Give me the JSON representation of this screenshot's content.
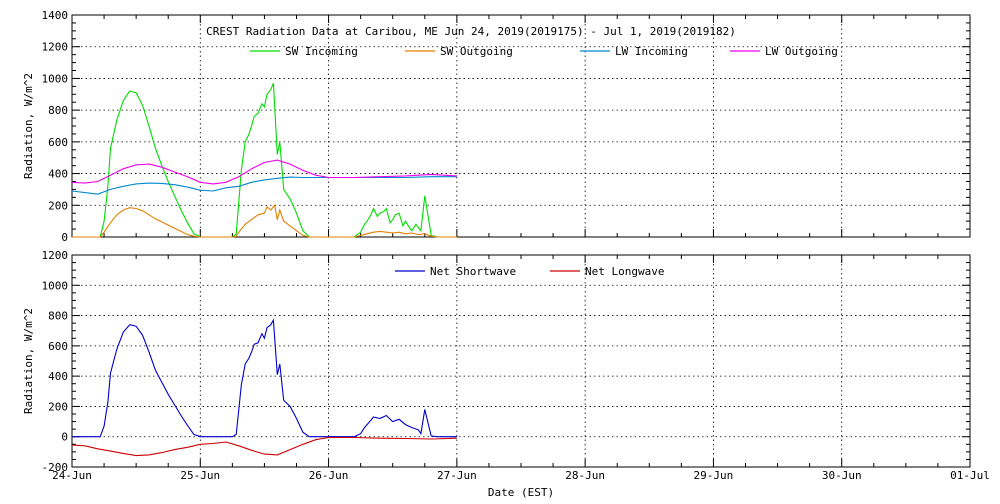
{
  "chart_data": [
    {
      "type": "line",
      "title": "CREST Radiation Data at Caribou, ME   Jun 24, 2019(2019175) - Jul  1, 2019(2019182)",
      "xlabel": "",
      "ylabel": "Radiation, W/m^2",
      "x_range": [
        "24-Jun",
        "01-Jul"
      ],
      "ylim": [
        0,
        1400
      ],
      "yticks": [
        0,
        200,
        400,
        600,
        800,
        1000,
        1200,
        1400
      ],
      "grid": true,
      "legend_position": "top",
      "series": [
        {
          "name": "SW Incoming",
          "color": "#00dd00",
          "x": [
            0.0,
            0.2,
            0.22,
            0.25,
            0.28,
            0.3,
            0.35,
            0.4,
            0.45,
            0.5,
            0.55,
            0.6,
            0.65,
            0.7,
            0.75,
            0.8,
            0.85,
            0.9,
            0.95,
            1.0,
            1.05,
            1.2,
            1.25,
            1.28,
            1.3,
            1.32,
            1.35,
            1.38,
            1.4,
            1.42,
            1.45,
            1.48,
            1.5,
            1.52,
            1.55,
            1.57,
            1.6,
            1.62,
            1.65,
            1.7,
            1.75,
            1.8,
            1.85,
            2.0,
            2.2,
            2.25,
            2.28,
            2.3,
            2.33,
            2.35,
            2.38,
            2.4,
            2.43,
            2.45,
            2.48,
            2.5,
            2.52,
            2.55,
            2.58,
            2.6,
            2.63,
            2.65,
            2.68,
            2.7,
            2.72,
            2.75,
            2.8,
            2.85,
            3.0
          ],
          "y": [
            0,
            0,
            0,
            100,
            320,
            560,
            740,
            860,
            920,
            910,
            830,
            700,
            560,
            450,
            350,
            260,
            170,
            90,
            20,
            0,
            0,
            0,
            0,
            20,
            220,
            420,
            600,
            650,
            700,
            760,
            780,
            840,
            820,
            900,
            930,
            970,
            520,
            600,
            300,
            240,
            150,
            40,
            0,
            0,
            0,
            30,
            80,
            100,
            140,
            180,
            130,
            150,
            160,
            180,
            90,
            110,
            140,
            150,
            70,
            100,
            60,
            40,
            80,
            60,
            40,
            260,
            10,
            0,
            0
          ]
        },
        {
          "name": "SW Outgoing",
          "color": "#e08000",
          "x": [
            0.0,
            0.2,
            0.22,
            0.25,
            0.3,
            0.35,
            0.4,
            0.45,
            0.5,
            0.55,
            0.6,
            0.65,
            0.7,
            0.75,
            0.8,
            0.85,
            0.9,
            0.95,
            1.0,
            1.05,
            1.2,
            1.25,
            1.28,
            1.3,
            1.35,
            1.4,
            1.45,
            1.5,
            1.52,
            1.55,
            1.58,
            1.6,
            1.62,
            1.65,
            1.7,
            1.75,
            1.8,
            1.85,
            2.0,
            2.2,
            2.25,
            2.3,
            2.35,
            2.4,
            2.45,
            2.5,
            2.55,
            2.6,
            2.65,
            2.7,
            2.75,
            2.8,
            2.85,
            3.0
          ],
          "y": [
            0,
            0,
            0,
            30,
            90,
            140,
            170,
            185,
            180,
            165,
            140,
            115,
            95,
            75,
            55,
            35,
            15,
            5,
            0,
            0,
            0,
            0,
            5,
            30,
            80,
            110,
            140,
            150,
            190,
            170,
            200,
            110,
            170,
            100,
            70,
            40,
            10,
            0,
            0,
            0,
            10,
            20,
            30,
            35,
            30,
            25,
            30,
            20,
            25,
            15,
            20,
            5,
            0,
            0
          ]
        },
        {
          "name": "LW Incoming",
          "color": "#0088cc",
          "x": [
            0.0,
            0.1,
            0.2,
            0.3,
            0.4,
            0.5,
            0.6,
            0.7,
            0.8,
            0.9,
            1.0,
            1.1,
            1.2,
            1.3,
            1.4,
            1.5,
            1.6,
            1.7,
            1.8,
            1.9,
            2.0,
            2.2,
            2.4,
            2.6,
            2.8,
            3.0
          ],
          "y": [
            290,
            280,
            270,
            300,
            320,
            335,
            340,
            338,
            330,
            315,
            295,
            290,
            310,
            320,
            345,
            360,
            370,
            378,
            375,
            375,
            375,
            375,
            375,
            375,
            380,
            380
          ]
        },
        {
          "name": "LW Outgoing",
          "color": "#ee00ee",
          "x": [
            0.0,
            0.1,
            0.2,
            0.3,
            0.4,
            0.5,
            0.6,
            0.7,
            0.8,
            0.9,
            1.0,
            1.1,
            1.2,
            1.3,
            1.4,
            1.5,
            1.6,
            1.7,
            1.8,
            1.9,
            2.0,
            2.2,
            2.4,
            2.6,
            2.8,
            3.0
          ],
          "y": [
            345,
            340,
            350,
            390,
            430,
            455,
            460,
            440,
            410,
            380,
            345,
            335,
            345,
            380,
            430,
            470,
            485,
            460,
            420,
            390,
            375,
            375,
            380,
            385,
            395,
            385
          ]
        }
      ]
    },
    {
      "type": "line",
      "title": "",
      "xlabel": "Date (EST)",
      "ylabel": "Radiation, W/m^2",
      "x_range": [
        "24-Jun",
        "01-Jul"
      ],
      "xtick_labels": [
        "24-Jun",
        "25-Jun",
        "26-Jun",
        "27-Jun",
        "28-Jun",
        "29-Jun",
        "30-Jun",
        "01-Jul"
      ],
      "ylim": [
        -200,
        1200
      ],
      "yticks": [
        -200,
        0,
        200,
        400,
        600,
        800,
        1000,
        1200
      ],
      "grid": true,
      "legend_position": "top",
      "series": [
        {
          "name": "Net Shortwave",
          "color": "#0000cc",
          "x": [
            0.0,
            0.2,
            0.22,
            0.25,
            0.28,
            0.3,
            0.35,
            0.4,
            0.45,
            0.5,
            0.55,
            0.6,
            0.65,
            0.7,
            0.75,
            0.8,
            0.85,
            0.9,
            0.95,
            1.0,
            1.05,
            1.2,
            1.25,
            1.28,
            1.3,
            1.32,
            1.35,
            1.38,
            1.4,
            1.42,
            1.45,
            1.48,
            1.5,
            1.52,
            1.55,
            1.57,
            1.6,
            1.62,
            1.65,
            1.7,
            1.75,
            1.8,
            1.85,
            2.0,
            2.2,
            2.25,
            2.28,
            2.3,
            2.33,
            2.35,
            2.4,
            2.45,
            2.5,
            2.55,
            2.6,
            2.65,
            2.7,
            2.72,
            2.75,
            2.8,
            2.85,
            3.0
          ],
          "y": [
            0,
            0,
            0,
            70,
            230,
            420,
            580,
            690,
            740,
            730,
            670,
            560,
            440,
            360,
            280,
            210,
            140,
            75,
            15,
            0,
            0,
            0,
            0,
            15,
            180,
            340,
            480,
            520,
            560,
            610,
            620,
            680,
            650,
            720,
            740,
            770,
            410,
            480,
            240,
            200,
            120,
            30,
            0,
            0,
            0,
            20,
            60,
            80,
            110,
            130,
            120,
            140,
            100,
            115,
            80,
            60,
            45,
            20,
            180,
            5,
            0,
            0
          ]
        },
        {
          "name": "Net Longwave",
          "color": "#cc0000",
          "x": [
            0.0,
            0.1,
            0.2,
            0.3,
            0.4,
            0.5,
            0.6,
            0.7,
            0.8,
            0.9,
            1.0,
            1.1,
            1.2,
            1.3,
            1.4,
            1.5,
            1.6,
            1.7,
            1.8,
            1.9,
            2.0,
            2.2,
            2.4,
            2.6,
            2.8,
            3.0
          ],
          "y": [
            -55,
            -60,
            -80,
            -95,
            -110,
            -125,
            -120,
            -105,
            -85,
            -70,
            -50,
            -45,
            -35,
            -60,
            -90,
            -115,
            -120,
            -85,
            -50,
            -20,
            -5,
            -5,
            -10,
            -12,
            -15,
            -10
          ]
        }
      ]
    }
  ]
}
